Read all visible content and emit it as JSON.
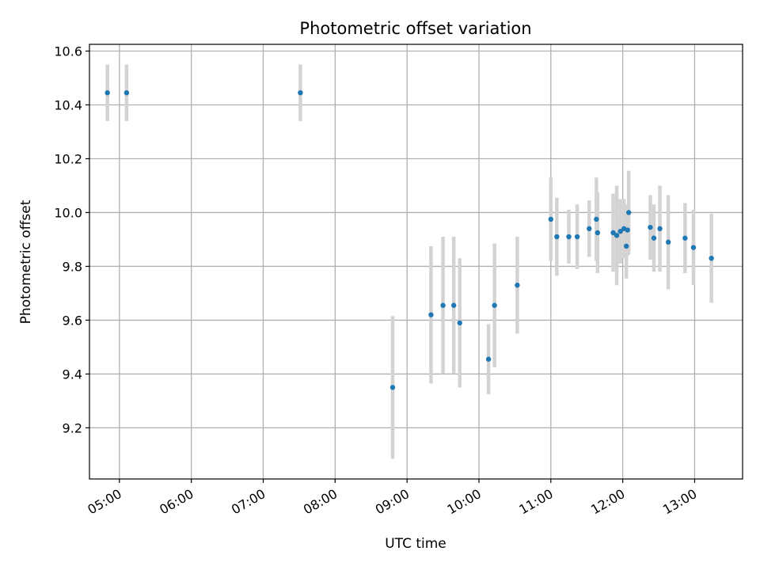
{
  "chart_data": {
    "type": "scatter",
    "title": "Photometric offset variation",
    "xlabel": "UTC time",
    "ylabel": "Photometric offset",
    "x_ticks": [
      "05:00",
      "06:00",
      "07:00",
      "08:00",
      "09:00",
      "10:00",
      "11:00",
      "12:00",
      "13:00"
    ],
    "y_ticks": [
      "9.2",
      "9.4",
      "9.6",
      "9.8",
      "10.0",
      "10.2",
      "10.4",
      "10.6"
    ],
    "xlim": [
      "04:35",
      "13:40"
    ],
    "ylim": [
      9.01,
      10.625
    ],
    "grid": true,
    "colors": {
      "point": "#1f77b4",
      "errorbar": "#d3d3d3",
      "grid": "#b0b0b0"
    },
    "points": [
      {
        "x": "04:50",
        "y": 10.445,
        "err": 0.105
      },
      {
        "x": "05:06",
        "y": 10.445,
        "err": 0.105
      },
      {
        "x": "07:31",
        "y": 10.445,
        "err": 0.105
      },
      {
        "x": "08:48",
        "y": 9.35,
        "err": 0.265
      },
      {
        "x": "09:20",
        "y": 9.62,
        "err": 0.255
      },
      {
        "x": "09:30",
        "y": 9.655,
        "err": 0.255
      },
      {
        "x": "09:39",
        "y": 9.655,
        "err": 0.255
      },
      {
        "x": "09:44",
        "y": 9.59,
        "err": 0.24
      },
      {
        "x": "10:08",
        "y": 9.455,
        "err": 0.13
      },
      {
        "x": "10:13",
        "y": 9.655,
        "err": 0.23
      },
      {
        "x": "10:32",
        "y": 9.73,
        "err": 0.18
      },
      {
        "x": "11:00",
        "y": 9.975,
        "err": 0.155
      },
      {
        "x": "11:05",
        "y": 9.91,
        "err": 0.145
      },
      {
        "x": "11:15",
        "y": 9.91,
        "err": 0.1
      },
      {
        "x": "11:22",
        "y": 9.91,
        "err": 0.12
      },
      {
        "x": "11:32",
        "y": 9.94,
        "err": 0.105
      },
      {
        "x": "11:38",
        "y": 9.975,
        "err": 0.155
      },
      {
        "x": "11:39",
        "y": 9.925,
        "err": 0.15
      },
      {
        "x": "11:52",
        "y": 9.925,
        "err": 0.145
      },
      {
        "x": "11:55",
        "y": 9.915,
        "err": 0.185
      },
      {
        "x": "11:58",
        "y": 9.93,
        "err": 0.12
      },
      {
        "x": "12:01",
        "y": 9.94,
        "err": 0.11
      },
      {
        "x": "12:03",
        "y": 9.875,
        "err": 0.12
      },
      {
        "x": "12:04",
        "y": 9.935,
        "err": 0.095
      },
      {
        "x": "12:05",
        "y": 10.0,
        "err": 0.155
      },
      {
        "x": "12:23",
        "y": 9.945,
        "err": 0.12
      },
      {
        "x": "12:26",
        "y": 9.905,
        "err": 0.125
      },
      {
        "x": "12:31",
        "y": 9.94,
        "err": 0.16
      },
      {
        "x": "12:38",
        "y": 9.89,
        "err": 0.175
      },
      {
        "x": "12:52",
        "y": 9.905,
        "err": 0.13
      },
      {
        "x": "12:59",
        "y": 9.87,
        "err": 0.14
      },
      {
        "x": "13:14",
        "y": 9.83,
        "err": 0.165
      }
    ]
  }
}
